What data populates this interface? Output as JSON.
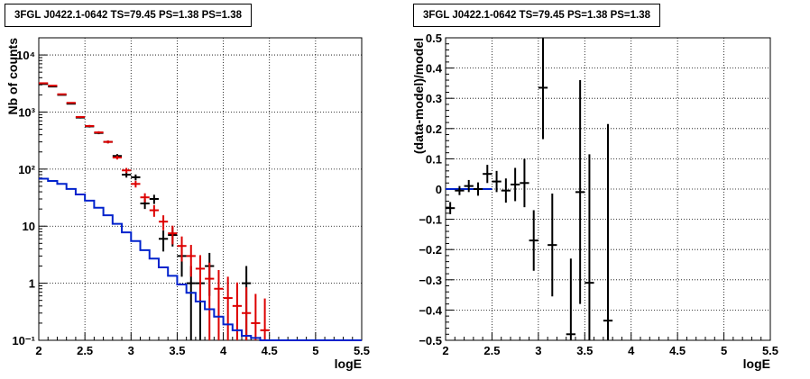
{
  "chart_data": [
    {
      "type": "line",
      "title": "3FGL J0422.1-0642 TS=79.45 PS=1.38 PS=1.38",
      "xlabel": "logE",
      "ylabel": "Nb of counts",
      "xlim": [
        2,
        5.5
      ],
      "ylim": [
        0.1,
        20000
      ],
      "yscale": "log",
      "grid": true,
      "xticks": [
        "2",
        "2.5",
        "3",
        "3.5",
        "4",
        "4.5",
        "5",
        "5.5"
      ],
      "yticks": [
        "10⁻¹",
        "1",
        "10",
        "10²",
        "10³",
        "10⁴"
      ],
      "bin_width": 0.1,
      "series": [
        {
          "color": "#000000",
          "style": "errorbar",
          "points": [
            {
              "x": 2.05,
              "y": 3100,
              "err": 56
            },
            {
              "x": 2.15,
              "y": 2800,
              "err": 53
            },
            {
              "x": 2.25,
              "y": 2000,
              "err": 45
            },
            {
              "x": 2.35,
              "y": 1400,
              "err": 37
            },
            {
              "x": 2.45,
              "y": 800,
              "err": 28
            },
            {
              "x": 2.55,
              "y": 560,
              "err": 24
            },
            {
              "x": 2.65,
              "y": 430,
              "err": 21
            },
            {
              "x": 2.75,
              "y": 300,
              "err": 17
            },
            {
              "x": 2.85,
              "y": 170,
              "err": 13
            },
            {
              "x": 2.95,
              "y": 80,
              "err": 9
            },
            {
              "x": 3.05,
              "y": 72,
              "err": 8.5
            },
            {
              "x": 3.15,
              "y": 25,
              "err": 5
            },
            {
              "x": 3.25,
              "y": 30,
              "err": 5.5
            },
            {
              "x": 3.35,
              "y": 6,
              "err": 2.4
            },
            {
              "x": 3.45,
              "y": 7,
              "err": 2.6
            },
            {
              "x": 3.55,
              "y": 3,
              "err": 1.7
            },
            {
              "x": 3.65,
              "y": 1,
              "err": 1
            },
            {
              "x": 3.75,
              "y": 1,
              "err": 1
            },
            {
              "x": 3.85,
              "y": 2,
              "err": 1.4
            },
            {
              "x": 4.25,
              "y": 1,
              "err": 1
            }
          ]
        },
        {
          "color": "#dd0000",
          "style": "errorbar",
          "points": [
            {
              "x": 2.05,
              "y": 3200,
              "err": 60
            },
            {
              "x": 2.15,
              "y": 2900,
              "err": 54
            },
            {
              "x": 2.25,
              "y": 2050,
              "err": 45
            },
            {
              "x": 2.35,
              "y": 1450,
              "err": 38
            },
            {
              "x": 2.45,
              "y": 820,
              "err": 29
            },
            {
              "x": 2.55,
              "y": 570,
              "err": 24
            },
            {
              "x": 2.65,
              "y": 440,
              "err": 21
            },
            {
              "x": 2.75,
              "y": 300,
              "err": 17
            },
            {
              "x": 2.85,
              "y": 160,
              "err": 12.6
            },
            {
              "x": 2.95,
              "y": 95,
              "err": 9.7
            },
            {
              "x": 3.05,
              "y": 55,
              "err": 7.4
            },
            {
              "x": 3.15,
              "y": 32,
              "err": 5.7
            },
            {
              "x": 3.25,
              "y": 19,
              "err": 4.4
            },
            {
              "x": 3.35,
              "y": 12,
              "err": 3.5
            },
            {
              "x": 3.45,
              "y": 7.5,
              "err": 2.7
            },
            {
              "x": 3.55,
              "y": 4.5,
              "err": 2.1
            },
            {
              "x": 3.65,
              "y": 3,
              "err": 1.7
            },
            {
              "x": 3.75,
              "y": 1.8,
              "err": 1.3
            },
            {
              "x": 3.85,
              "y": 1.2,
              "err": 1.1
            },
            {
              "x": 3.95,
              "y": 0.8,
              "err": 0.9
            },
            {
              "x": 4.05,
              "y": 0.55,
              "err": 0.75
            },
            {
              "x": 4.15,
              "y": 0.4,
              "err": 0.63
            },
            {
              "x": 4.25,
              "y": 0.3,
              "err": 0.55
            },
            {
              "x": 4.35,
              "y": 0.2,
              "err": 0.45
            },
            {
              "x": 4.45,
              "y": 0.15,
              "err": 0.39
            }
          ]
        },
        {
          "color": "#0022cc",
          "style": "step",
          "x": [
            2.05,
            2.15,
            2.25,
            2.35,
            2.45,
            2.55,
            2.65,
            2.75,
            2.85,
            2.95,
            3.05,
            3.15,
            3.25,
            3.35,
            3.45,
            3.55,
            3.65,
            3.75,
            3.85,
            3.95,
            4.05,
            4.15,
            4.25,
            4.35,
            4.45,
            4.55,
            4.65,
            4.75,
            4.85,
            4.95,
            5.05,
            5.15,
            5.25,
            5.35,
            5.45
          ],
          "values": [
            68,
            62,
            55,
            45,
            36,
            28,
            21,
            15.5,
            11,
            7.8,
            5.5,
            3.8,
            2.7,
            1.9,
            1.35,
            0.95,
            0.68,
            0.48,
            0.35,
            0.26,
            0.19,
            0.15,
            0.12,
            0.11,
            0.1,
            0.1,
            0.1,
            0.1,
            0.1,
            0.1,
            0.1,
            0.1,
            0.1,
            0.1,
            0.1
          ]
        }
      ]
    },
    {
      "type": "scatter",
      "title": "3FGL J0422.1-0642 TS=79.45 PS=1.38 PS=1.38",
      "xlabel": "logE",
      "ylabel": "(data-model)/model",
      "xlim": [
        2,
        5.5
      ],
      "ylim": [
        -0.5,
        0.5
      ],
      "grid": true,
      "xticks": [
        "2",
        "2.5",
        "3",
        "3.5",
        "4",
        "4.5",
        "5",
        "5.5"
      ],
      "yticks": [
        "−0.5",
        "−0.4",
        "−0.3",
        "−0.2",
        "−0.1",
        "0",
        "0.1",
        "0.2",
        "0.3",
        "0.4",
        "0.5"
      ],
      "bin_width": 0.1,
      "reference_line": {
        "y": 0,
        "x_range": [
          2,
          2.5
        ],
        "color": "#0022cc"
      },
      "series": [
        {
          "color": "#000000",
          "style": "errorbar",
          "points": [
            {
              "x": 2.05,
              "y": -0.063,
              "err": 0.02
            },
            {
              "x": 2.15,
              "y": -0.005,
              "err": 0.015
            },
            {
              "x": 2.25,
              "y": 0.01,
              "err": 0.02
            },
            {
              "x": 2.35,
              "y": 0.0,
              "err": 0.022
            },
            {
              "x": 2.45,
              "y": 0.05,
              "err": 0.03
            },
            {
              "x": 2.55,
              "y": 0.025,
              "err": 0.035
            },
            {
              "x": 2.65,
              "y": -0.005,
              "err": 0.04
            },
            {
              "x": 2.75,
              "y": 0.015,
              "err": 0.055
            },
            {
              "x": 2.85,
              "y": 0.02,
              "err": 0.08
            },
            {
              "x": 2.95,
              "y": -0.17,
              "err": 0.1
            },
            {
              "x": 3.05,
              "y": 0.335,
              "err": 0.17
            },
            {
              "x": 3.15,
              "y": -0.185,
              "err": 0.17
            },
            {
              "x": 3.35,
              "y": -0.48,
              "err": 0.25
            },
            {
              "x": 3.45,
              "y": -0.01,
              "err": 0.37
            },
            {
              "x": 3.55,
              "y": -0.31,
              "err": 0.425
            },
            {
              "x": 3.75,
              "y": -0.435,
              "err": 0.65
            }
          ]
        }
      ]
    }
  ]
}
